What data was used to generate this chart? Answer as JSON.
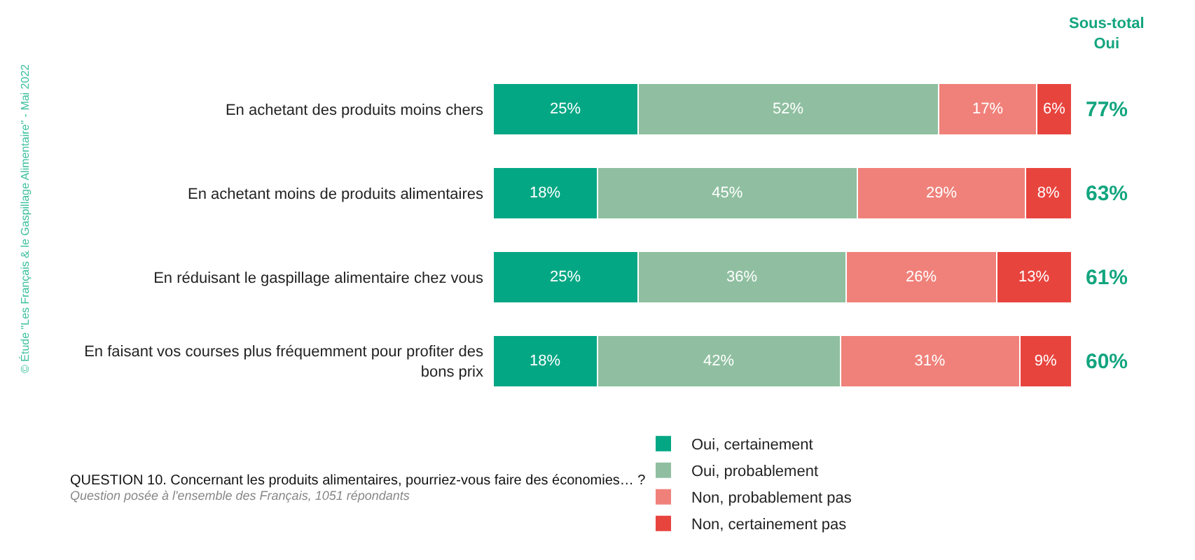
{
  "chart_data": {
    "type": "bar",
    "orientation": "horizontal",
    "stacked": true,
    "categories": [
      "En achetant des produits moins chers",
      "En achetant moins de produits alimentaires",
      "En réduisant le gaspillage alimentaire chez vous",
      "En faisant vos courses plus fréquemment pour profiter des bons prix"
    ],
    "series": [
      {
        "name": "Oui, certainement",
        "color": "#04a784",
        "values": [
          25,
          18,
          25,
          18
        ],
        "value_labels": [
          "25%",
          "18%",
          "25%",
          "18%"
        ]
      },
      {
        "name": "Oui, probablement",
        "color": "#8fbfa0",
        "values": [
          52,
          45,
          36,
          42
        ],
        "value_labels": [
          "52%",
          "45%",
          "36%",
          "42%"
        ]
      },
      {
        "name": "Non, probablement pas",
        "color": "#f0817a",
        "values": [
          17,
          29,
          26,
          31
        ],
        "value_labels": [
          "17%",
          "29%",
          "26%",
          "31%"
        ]
      },
      {
        "name": "Non, certainement pas",
        "color": "#e8443e",
        "values": [
          6,
          8,
          13,
          9
        ],
        "value_labels": [
          "6%",
          "8%",
          "13%",
          "9%"
        ]
      }
    ],
    "xlim": [
      0,
      100
    ],
    "tick_labels": "y",
    "legend": "bottom",
    "annotations": [
      "Sous-total Oui",
      "77%",
      "63%",
      "61%",
      "60%",
      "QUESTION 10. Concernant les produits alimentaires, pourriez-vous faire des économies… ?",
      "Question posée à l'ensemble des Français, 1051 répondants",
      "© Étude \"Les Français & le Gaspillage Alimentaire\" - Mai 2022"
    ]
  }
}
